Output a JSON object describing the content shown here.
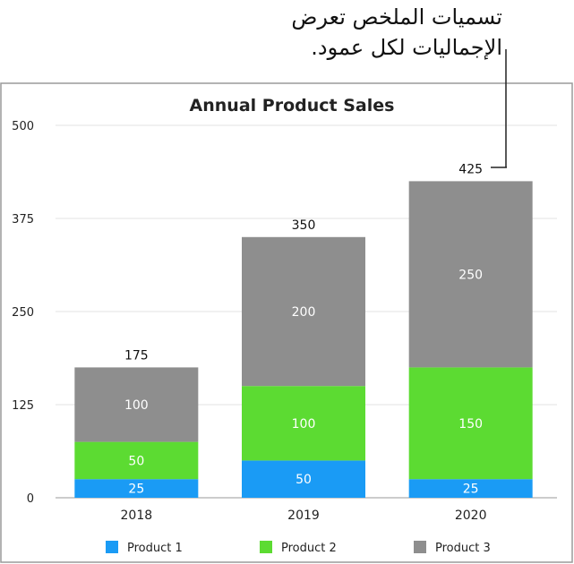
{
  "annotation": "تسميات الملخص تعرض الإجماليات لكل عمود.",
  "chart_data": {
    "type": "bar",
    "stacked": true,
    "title": "Annual Product Sales",
    "categories": [
      "2018",
      "2019",
      "2020"
    ],
    "series": [
      {
        "name": "Product 1",
        "color": "#1a9bf5",
        "values": [
          25,
          50,
          25
        ]
      },
      {
        "name": "Product 2",
        "color": "#5cdb32",
        "values": [
          50,
          100,
          150
        ]
      },
      {
        "name": "Product 3",
        "color": "#8e8e8e",
        "values": [
          100,
          200,
          250
        ]
      }
    ],
    "totals": [
      175,
      350,
      425
    ],
    "ylim": [
      0,
      500
    ],
    "yticks": [
      0,
      125,
      250,
      375,
      500
    ],
    "grid": true,
    "legend_position": "bottom"
  }
}
